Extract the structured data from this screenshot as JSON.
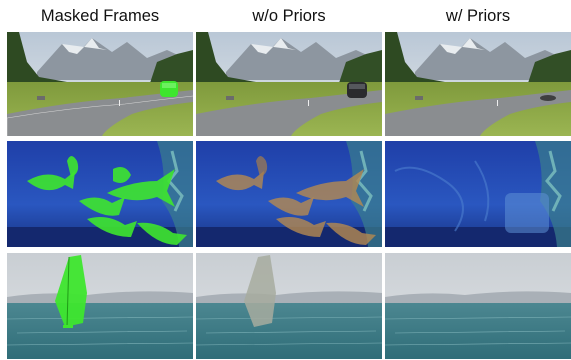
{
  "figure": {
    "columns": [
      {
        "title": "Masked Frames"
      },
      {
        "title": "w/o Priors"
      },
      {
        "title": "w/ Priors"
      }
    ],
    "rows": [
      {
        "scene": "mountain road with car",
        "panels": [
          "car masked in green",
          "car blurred dark",
          "car removed, dark smudge left"
        ]
      },
      {
        "scene": "aquarium with goldfish",
        "panels": [
          "fish masked in green",
          "fish regions filled orange-brown",
          "fish removed, plants restored"
        ]
      },
      {
        "scene": "windsurfer on sea",
        "panels": [
          "sail masked in green",
          "sail region grey blur",
          "sail removed, clean sea"
        ]
      }
    ],
    "colors": {
      "mask_green": "#3ee62e",
      "water_blue": "#1d3f9e",
      "sea": "#3f7f8a"
    }
  }
}
